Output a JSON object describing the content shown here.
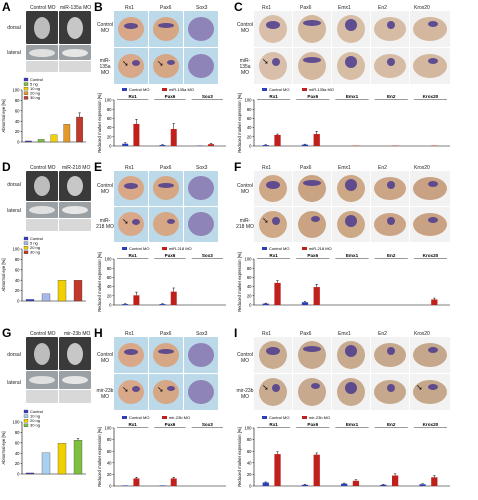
{
  "panels": {
    "A": {
      "label": "A",
      "col_left": "Control MO",
      "col_right": "miR-135a MO",
      "rows": [
        "dorsal",
        "lateral"
      ]
    },
    "B": {
      "label": "B",
      "cols": [
        "Rx1",
        "Pax6",
        "Sox3"
      ],
      "rows": [
        "Control MO",
        "miR-135a MO"
      ]
    },
    "C": {
      "label": "C",
      "cols": [
        "Rx1",
        "Pax6",
        "Emx1",
        "En2",
        "Krox20"
      ],
      "rows": [
        "Control MO",
        "miR-135a MO"
      ]
    },
    "D": {
      "label": "D",
      "col_left": "Control MO",
      "col_right": "miR-218 MO",
      "rows": [
        "dorsal",
        "lateral"
      ]
    },
    "E": {
      "label": "E",
      "cols": [
        "Rx1",
        "Pax6",
        "Sox3"
      ],
      "rows": [
        "Control MO",
        "miR-218 MO"
      ]
    },
    "F": {
      "label": "F",
      "cols": [
        "Rx1",
        "Pax6",
        "Emx1",
        "En2",
        "Krox20"
      ],
      "rows": [
        "Control MO",
        "miR-218 MO"
      ]
    },
    "G": {
      "label": "G",
      "col_left": "Control MO",
      "col_right": "mir-23b MO",
      "rows": [
        "dorsal",
        "lateral"
      ]
    },
    "H": {
      "label": "H",
      "cols": [
        "Rx1",
        "Pax6",
        "Sox3"
      ],
      "rows": [
        "Control MO",
        "mir-23b MO"
      ]
    },
    "I": {
      "label": "I",
      "cols": [
        "Rx1",
        "Pax6",
        "Emx1",
        "En2",
        "Krox20"
      ],
      "rows": [
        "Control MO",
        "mir-23b MO"
      ]
    }
  },
  "chart_data": [
    {
      "id": "A-chart",
      "type": "bar",
      "ylabel": "Abnormal eye [%]",
      "ylim": [
        0,
        100
      ],
      "series": [
        {
          "name": "Control"
        },
        {
          "name": "5 ng"
        },
        {
          "name": "10 ng"
        },
        {
          "name": "20 ng"
        },
        {
          "name": "30 ng"
        }
      ],
      "values": [
        2,
        5,
        14,
        34,
        48
      ],
      "errors": [
        0,
        0,
        0,
        0,
        8
      ],
      "colors": [
        "#3c3cc8",
        "#7fbf3f",
        "#f0d000",
        "#e39a2a",
        "#c0392b"
      ],
      "legend": "top-left"
    },
    {
      "id": "B-chart",
      "type": "bar",
      "ylabel": "Reduced marker expression [%]",
      "ylim": [
        0,
        100
      ],
      "legend_items": [
        "Control MO",
        "miR-135a MO"
      ],
      "groups": [
        "Rx1",
        "Pax6",
        "Sox3"
      ],
      "control": [
        5,
        2,
        1
      ],
      "treated": [
        48,
        37,
        4
      ],
      "errors_ctrl": [
        2,
        1,
        0
      ],
      "errors_trt": [
        10,
        12,
        2
      ]
    },
    {
      "id": "C-chart",
      "type": "bar",
      "ylabel": "Reduced marker expression [%]",
      "ylim": [
        0,
        100
      ],
      "legend_items": [
        "Control MO",
        "miR-135a MO"
      ],
      "groups": [
        "Rx1",
        "Pax6",
        "Emx1",
        "En2",
        "Krox20"
      ],
      "control": [
        2,
        3,
        0,
        0,
        0
      ],
      "treated": [
        24,
        26,
        1,
        1,
        1
      ],
      "errors_ctrl": [
        1,
        1,
        0,
        0,
        0
      ],
      "errors_trt": [
        2,
        6,
        0,
        0,
        0
      ]
    },
    {
      "id": "D-chart",
      "type": "bar",
      "ylabel": "Abnormal eye [%]",
      "ylim": [
        0,
        100
      ],
      "series": [
        {
          "name": "Control"
        },
        {
          "name": "5 ng"
        },
        {
          "name": "20 ng"
        },
        {
          "name": "30 ng"
        }
      ],
      "values": [
        3,
        14,
        40,
        40
      ],
      "errors": [
        0,
        0,
        0,
        0
      ],
      "colors": [
        "#3c3cc8",
        "#a8b8e8",
        "#f0d000",
        "#c0392b"
      ],
      "legend": "top-left"
    },
    {
      "id": "E-chart",
      "type": "bar",
      "ylabel": "Reduced marker expression [%]",
      "ylim": [
        0,
        100
      ],
      "legend_items": [
        "Control MO",
        "miR-218 MO"
      ],
      "groups": [
        "Rx1",
        "Pax6",
        "Sox3"
      ],
      "control": [
        2,
        2,
        0
      ],
      "treated": [
        21,
        29,
        0
      ],
      "errors_ctrl": [
        1,
        1,
        0
      ],
      "errors_trt": [
        7,
        8,
        0
      ]
    },
    {
      "id": "F-chart",
      "type": "bar",
      "ylabel": "Reduced marker expression [%]",
      "ylim": [
        0,
        100
      ],
      "legend_items": [
        "Control MO",
        "miR-218 MO"
      ],
      "groups": [
        "Rx1",
        "Pax6",
        "Emx1",
        "En2",
        "Krox20"
      ],
      "control": [
        3,
        6,
        0,
        0,
        0
      ],
      "treated": [
        48,
        39,
        0,
        0,
        12
      ],
      "errors_ctrl": [
        1,
        2,
        0,
        0,
        0
      ],
      "errors_trt": [
        5,
        6,
        0,
        0,
        3
      ]
    },
    {
      "id": "G-chart",
      "type": "bar",
      "ylabel": "Abnormal eye [%]",
      "ylim": [
        0,
        100
      ],
      "series": [
        {
          "name": "Control"
        },
        {
          "name": "10 ng"
        },
        {
          "name": "20 ng"
        },
        {
          "name": "30 ng"
        }
      ],
      "values": [
        2,
        41,
        59,
        65
      ],
      "errors": [
        0,
        0,
        0,
        3
      ],
      "colors": [
        "#3c3cc8",
        "#a8d0f0",
        "#f0d000",
        "#7fbf3f"
      ],
      "legend": "top-left"
    },
    {
      "id": "H-chart",
      "type": "bar",
      "ylabel": "Reduced marker expression [%]",
      "ylim": [
        0,
        100
      ],
      "legend_items": [
        "Control MO",
        "mir-23b MO"
      ],
      "groups": [
        "Rx1",
        "Pax6",
        "Sox3"
      ],
      "control": [
        1,
        1,
        0
      ],
      "treated": [
        13,
        13,
        0
      ],
      "errors_ctrl": [
        0,
        0,
        0
      ],
      "errors_trt": [
        2,
        2,
        0
      ]
    },
    {
      "id": "I-chart",
      "type": "bar",
      "ylabel": "Reduced marker expression [%]",
      "ylim": [
        0,
        100
      ],
      "legend_items": [
        "Control MO",
        "mir-23b MO"
      ],
      "groups": [
        "Rx1",
        "Pax6",
        "Emx1",
        "En2",
        "Krox20"
      ],
      "control": [
        6,
        2,
        4,
        2,
        3
      ],
      "treated": [
        55,
        54,
        9,
        18,
        15
      ],
      "errors_ctrl": [
        1,
        1,
        1,
        1,
        1
      ],
      "errors_trt": [
        4,
        3,
        2,
        3,
        3
      ]
    }
  ]
}
